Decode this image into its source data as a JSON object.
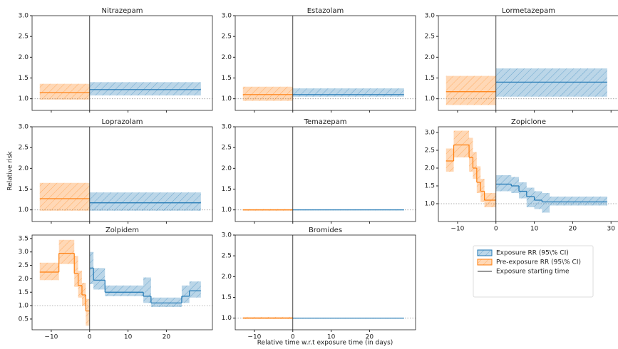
{
  "xlabel": "Relative time w.r.t exposure time (in days)",
  "ylabel": "Relative risk",
  "exposure_start": 0,
  "reference": 1,
  "legend": [
    {
      "label": "Exposure RR (95\\% CI)",
      "color": "#1f77b4"
    },
    {
      "label": "Pre-exposure RR (95\\% CI)",
      "color": "#ff7f0e"
    },
    {
      "label": "Exposure starting time",
      "color": "#333333"
    }
  ],
  "chart_data": [
    {
      "type": "step",
      "title": "Nitrazepam",
      "xlim": [
        -15,
        32
      ],
      "ylim": [
        0.72,
        3.0
      ],
      "x_tick_labels": false,
      "xticks": [
        {
          "value": -10,
          "label": "−10"
        },
        0,
        10,
        20
      ],
      "yticks": [
        {
          "value": 1,
          "label": "1.0"
        },
        1.5,
        {
          "value": 2,
          "label": "2.0"
        },
        2.5,
        {
          "value": 3,
          "label": "3.0"
        }
      ],
      "series": [
        {
          "color": "#ff7f0e",
          "bins": [
            -13,
            0
          ],
          "values": [
            1.15
          ],
          "lower": [
            0.98
          ],
          "upper": [
            1.36
          ]
        },
        {
          "color": "#1f77b4",
          "bins": [
            0,
            29
          ],
          "values": [
            1.22
          ],
          "lower": [
            1.08
          ],
          "upper": [
            1.4
          ]
        }
      ]
    },
    {
      "type": "step",
      "title": "Estazolam",
      "xlim": [
        -15,
        32
      ],
      "ylim": [
        0.72,
        3.0
      ],
      "x_tick_labels": false,
      "xticks": [
        {
          "value": -10,
          "label": "−10"
        },
        0,
        10,
        20
      ],
      "yticks": [
        {
          "value": 1,
          "label": "1.0"
        },
        1.5,
        {
          "value": 2,
          "label": "2.0"
        },
        2.5,
        {
          "value": 3,
          "label": "3.0"
        }
      ],
      "series": [
        {
          "color": "#ff7f0e",
          "bins": [
            -13,
            0
          ],
          "values": [
            1.1
          ],
          "lower": [
            0.95
          ],
          "upper": [
            1.29
          ]
        },
        {
          "color": "#1f77b4",
          "bins": [
            0,
            29
          ],
          "values": [
            1.1
          ],
          "lower": [
            1.05
          ],
          "upper": [
            1.25
          ]
        }
      ]
    },
    {
      "type": "step",
      "title": "Lormetazepam",
      "xlim": [
        -15,
        32
      ],
      "ylim": [
        0.72,
        3.0
      ],
      "x_tick_labels": false,
      "xticks": [
        {
          "value": -10,
          "label": "−10"
        },
        0,
        10,
        20,
        30
      ],
      "yticks": [
        {
          "value": 1,
          "label": "1.0"
        },
        1.5,
        {
          "value": 2,
          "label": "2.0"
        },
        2.5,
        {
          "value": 3,
          "label": "3.0"
        }
      ],
      "series": [
        {
          "color": "#ff7f0e",
          "bins": [
            -13,
            0
          ],
          "values": [
            1.17
          ],
          "lower": [
            0.85
          ],
          "upper": [
            1.55
          ]
        },
        {
          "color": "#1f77b4",
          "bins": [
            0,
            29
          ],
          "values": [
            1.4
          ],
          "lower": [
            1.05
          ],
          "upper": [
            1.73
          ]
        }
      ]
    },
    {
      "type": "step",
      "title": "Loprazolam",
      "xlim": [
        -15,
        32
      ],
      "ylim": [
        0.72,
        3.0
      ],
      "x_tick_labels": false,
      "xticks": [
        {
          "value": -10,
          "label": "−10"
        },
        0,
        10,
        20
      ],
      "yticks": [
        {
          "value": 1,
          "label": "1.0"
        },
        1.5,
        {
          "value": 2,
          "label": "2.0"
        },
        2.5,
        {
          "value": 3,
          "label": "3.0"
        }
      ],
      "series": [
        {
          "color": "#ff7f0e",
          "bins": [
            -13,
            0
          ],
          "values": [
            1.27
          ],
          "lower": [
            0.98
          ],
          "upper": [
            1.65
          ]
        },
        {
          "color": "#1f77b4",
          "bins": [
            0,
            29
          ],
          "values": [
            1.17
          ],
          "lower": [
            0.98
          ],
          "upper": [
            1.42
          ]
        }
      ]
    },
    {
      "type": "step",
      "title": "Temazepam",
      "xlim": [
        -15,
        32
      ],
      "ylim": [
        0.72,
        3.0
      ],
      "x_tick_labels": false,
      "xticks": [
        {
          "value": -10,
          "label": "−10"
        },
        0,
        10,
        20
      ],
      "yticks": [
        {
          "value": 1,
          "label": "1.0"
        },
        1.5,
        {
          "value": 2,
          "label": "2.0"
        },
        2.5,
        {
          "value": 3,
          "label": "3.0"
        }
      ],
      "series": [
        {
          "color": "#ff7f0e",
          "bins": [
            -13,
            0
          ],
          "values": [
            1.0
          ],
          "lower": [
            0.98
          ],
          "upper": [
            1.02
          ]
        },
        {
          "color": "#1f77b4",
          "bins": [
            0,
            29
          ],
          "values": [
            1.0
          ],
          "lower": [
            0.99
          ],
          "upper": [
            1.01
          ]
        }
      ]
    },
    {
      "type": "step",
      "title": "Zopiclone",
      "xlim": [
        -15,
        32
      ],
      "ylim": [
        0.5,
        3.16
      ],
      "x_tick_labels": true,
      "xticks": [
        {
          "value": -10,
          "label": "−10"
        },
        0,
        10,
        20,
        30
      ],
      "yticks": [
        {
          "value": 1,
          "label": "1.0"
        },
        1.5,
        {
          "value": 2,
          "label": "2.0"
        },
        2.5,
        {
          "value": 3,
          "label": "3.0"
        }
      ],
      "series": [
        {
          "color": "#ff7f0e",
          "bins": [
            -13,
            -11,
            -7,
            -6,
            -5,
            -4,
            -3,
            0
          ],
          "values": [
            2.2,
            2.65,
            2.3,
            2.0,
            1.6,
            1.35,
            1.1
          ],
          "lower": [
            1.9,
            2.3,
            1.9,
            1.7,
            1.3,
            1.05,
            0.9
          ],
          "upper": [
            2.55,
            3.05,
            2.85,
            2.45,
            2.05,
            1.7,
            1.3
          ]
        },
        {
          "color": "#1f77b4",
          "bins": [
            0,
            4,
            6,
            8,
            10,
            12,
            14,
            29
          ],
          "values": [
            1.55,
            1.5,
            1.35,
            1.2,
            1.1,
            1.05,
            1.05
          ],
          "lower": [
            1.35,
            1.3,
            1.15,
            0.9,
            0.85,
            0.75,
            0.95
          ],
          "upper": [
            1.8,
            1.75,
            1.6,
            1.45,
            1.35,
            1.3,
            1.2
          ]
        }
      ]
    },
    {
      "type": "step",
      "title": "Zolpidem",
      "xlim": [
        -15,
        32
      ],
      "ylim": [
        0.1,
        3.63
      ],
      "x_tick_labels": true,
      "xticks": [
        {
          "value": -10,
          "label": "−10"
        },
        0,
        10,
        20
      ],
      "yticks": [
        0.5,
        {
          "value": 1,
          "label": "1.0"
        },
        1.5,
        {
          "value": 2,
          "label": "2.0"
        },
        2.5,
        {
          "value": 3,
          "label": "3.0"
        },
        3.5
      ],
      "series": [
        {
          "color": "#ff7f0e",
          "bins": [
            -13,
            -8,
            -4,
            -3,
            -2,
            -1,
            0
          ],
          "values": [
            2.25,
            2.95,
            2.2,
            1.75,
            1.4,
            0.8
          ],
          "lower": [
            1.95,
            2.55,
            1.7,
            1.3,
            1.0,
            0.25
          ],
          "upper": [
            2.6,
            3.45,
            2.85,
            2.3,
            1.85,
            1.25
          ]
        },
        {
          "color": "#1f77b4",
          "bins": [
            0,
            1,
            4,
            10,
            14,
            16,
            24,
            26,
            29
          ],
          "values": [
            2.4,
            1.95,
            1.5,
            1.5,
            1.35,
            1.1,
            1.35,
            1.55
          ],
          "lower": [
            1.8,
            1.6,
            1.35,
            1.35,
            1.1,
            0.95,
            1.1,
            1.3
          ],
          "upper": [
            3.0,
            2.4,
            1.75,
            1.75,
            2.05,
            1.3,
            1.75,
            1.9
          ]
        }
      ]
    },
    {
      "type": "step",
      "title": "Bromides",
      "xlim": [
        -15,
        32
      ],
      "ylim": [
        0.72,
        3.0
      ],
      "x_tick_labels": true,
      "xticks": [
        {
          "value": -10,
          "label": "−10"
        },
        0,
        10,
        20
      ],
      "yticks": [
        {
          "value": 1,
          "label": "1.0"
        },
        1.5,
        {
          "value": 2,
          "label": "2.0"
        },
        2.5,
        {
          "value": 3,
          "label": "3.0"
        }
      ],
      "series": [
        {
          "color": "#ff7f0e",
          "bins": [
            -13,
            0
          ],
          "values": [
            1.0
          ],
          "lower": [
            0.98
          ],
          "upper": [
            1.03
          ]
        },
        {
          "color": "#1f77b4",
          "bins": [
            0,
            29
          ],
          "values": [
            1.0
          ],
          "lower": [
            0.99
          ],
          "upper": [
            1.01
          ]
        }
      ]
    }
  ]
}
